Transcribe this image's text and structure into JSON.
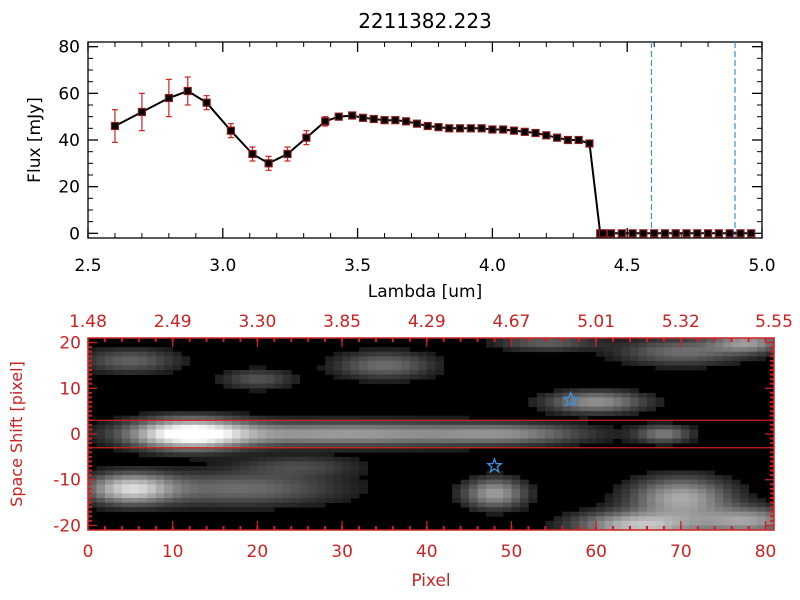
{
  "chart_data": [
    {
      "type": "line",
      "title": "2211382.223",
      "xlabel": "Lambda [um]",
      "ylabel": "Flux [mJy]",
      "xlim": [
        2.5,
        5.0
      ],
      "ylim": [
        -2,
        82
      ],
      "x_ticks": [
        2.5,
        3.0,
        3.5,
        4.0,
        4.5,
        5.0
      ],
      "x_tick_labels": [
        "2.5",
        "3.0",
        "3.5",
        "4.0",
        "4.5",
        "5.0"
      ],
      "y_ticks": [
        0,
        20,
        40,
        60,
        80
      ],
      "y_tick_labels": [
        "0",
        "20",
        "40",
        "60",
        "80"
      ],
      "vlines": [
        4.59,
        4.9
      ],
      "series": [
        {
          "name": "flux",
          "x": [
            2.6,
            2.7,
            2.8,
            2.87,
            2.94,
            3.03,
            3.11,
            3.17,
            3.24,
            3.31,
            3.38,
            3.43,
            3.48,
            3.52,
            3.56,
            3.6,
            3.64,
            3.68,
            3.72,
            3.76,
            3.8,
            3.84,
            3.88,
            3.92,
            3.96,
            4.0,
            4.04,
            4.08,
            4.12,
            4.16,
            4.2,
            4.24,
            4.28,
            4.32,
            4.36,
            4.4,
            4.41,
            4.44,
            4.48,
            4.52,
            4.56,
            4.6,
            4.64,
            4.68,
            4.72,
            4.76,
            4.8,
            4.84,
            4.88,
            4.92,
            4.96
          ],
          "y": [
            46,
            52,
            58,
            61,
            56,
            44,
            34,
            30,
            34,
            41,
            48,
            50,
            50.5,
            49.5,
            49,
            48.5,
            48.5,
            48,
            47,
            46,
            45.5,
            45,
            45,
            45,
            45,
            44.5,
            44.5,
            44,
            43.5,
            43,
            42,
            41,
            40,
            40,
            38.5,
            0,
            0,
            0,
            0,
            0,
            0,
            0,
            0,
            0,
            0,
            0,
            0,
            0,
            0,
            0,
            0
          ],
          "errors": [
            7,
            8,
            8,
            6,
            3,
            3,
            3,
            3,
            3,
            3,
            2,
            1,
            1,
            1,
            1,
            1,
            1,
            1,
            1,
            1,
            1,
            1,
            1,
            1,
            1,
            1,
            1,
            1,
            1,
            1,
            1,
            1,
            1,
            1,
            1,
            1,
            1,
            1,
            1,
            1,
            1,
            1,
            1,
            1,
            1,
            1,
            1,
            1,
            1,
            1,
            1
          ]
        }
      ]
    },
    {
      "type": "heatmap",
      "xlabel": "Pixel",
      "ylabel": "Space Shift [pixel]",
      "xlim": [
        0,
        81
      ],
      "ylim": [
        -21,
        21
      ],
      "x_ticks": [
        0,
        10,
        20,
        30,
        40,
        50,
        60,
        70,
        80
      ],
      "x_tick_labels": [
        "0",
        "10",
        "20",
        "30",
        "40",
        "50",
        "60",
        "70",
        "80"
      ],
      "y_ticks": [
        -20,
        -10,
        0,
        10,
        20
      ],
      "y_tick_labels": [
        "-20",
        "-10",
        "0",
        "10",
        "20"
      ],
      "top_tick_positions": [
        0,
        10,
        20,
        30,
        40,
        50,
        60,
        70,
        81
      ],
      "top_tick_labels": [
        "1.48",
        "2.49",
        "3.30",
        "3.85",
        "4.29",
        "4.67",
        "5.01",
        "5.32",
        "5.55"
      ],
      "hlines": [
        3,
        -3
      ],
      "markers": [
        {
          "symbol": "star",
          "x": 57,
          "y": 7.5
        },
        {
          "symbol": "star",
          "x": 48,
          "y": -7
        }
      ],
      "blobs": [
        {
          "cx": 12,
          "cy": 0,
          "sx": 4.5,
          "sy": 2.2,
          "a": 1.0
        },
        {
          "cx": 30,
          "cy": 0,
          "sx": 14,
          "sy": 1.8,
          "a": 0.55
        },
        {
          "cx": 50,
          "cy": 0,
          "sx": 6,
          "sy": 1.5,
          "a": 0.3
        },
        {
          "cx": 5,
          "cy": -12,
          "sx": 3.5,
          "sy": 2.2,
          "a": 0.75
        },
        {
          "cx": 18,
          "cy": -12,
          "sx": 8,
          "sy": 2.5,
          "a": 0.35
        },
        {
          "cx": 48,
          "cy": -13,
          "sx": 2.5,
          "sy": 2.2,
          "a": 0.55
        },
        {
          "cx": 70,
          "cy": -14,
          "sx": 4,
          "sy": 3,
          "a": 0.6
        },
        {
          "cx": 65,
          "cy": -20,
          "sx": 5,
          "sy": 2,
          "a": 0.7
        },
        {
          "cx": 78,
          "cy": -19,
          "sx": 4,
          "sy": 2,
          "a": 0.55
        },
        {
          "cx": 60,
          "cy": 7,
          "sx": 4,
          "sy": 1.6,
          "a": 0.5
        },
        {
          "cx": 68,
          "cy": 0,
          "sx": 2.2,
          "sy": 1.3,
          "a": 0.4
        },
        {
          "cx": 35,
          "cy": 15,
          "sx": 4,
          "sy": 2,
          "a": 0.35
        },
        {
          "cx": 5,
          "cy": 16,
          "sx": 4,
          "sy": 1.8,
          "a": 0.3
        },
        {
          "cx": 70,
          "cy": 18,
          "sx": 5,
          "sy": 2,
          "a": 0.35
        },
        {
          "cx": 78,
          "cy": 20,
          "sx": 3,
          "sy": 1.5,
          "a": 0.5
        },
        {
          "cx": 20,
          "cy": 12,
          "sx": 3,
          "sy": 1.5,
          "a": 0.25
        },
        {
          "cx": 54,
          "cy": 20,
          "sx": 4,
          "sy": 1.2,
          "a": 0.3
        },
        {
          "cx": 25,
          "cy": -7,
          "sx": 5,
          "sy": 1.5,
          "a": 0.2
        }
      ]
    }
  ]
}
